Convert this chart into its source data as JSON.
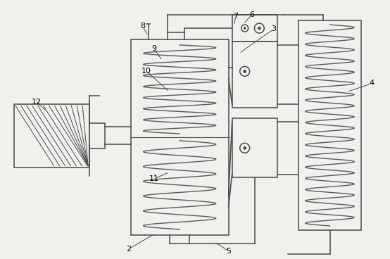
{
  "bg_color": "#f0f0ec",
  "line_color": "#4a4a4a",
  "lw": 1.1,
  "coil_color": "#5a5a5a",
  "figsize": [
    5.54,
    3.68
  ],
  "dpi": 100
}
